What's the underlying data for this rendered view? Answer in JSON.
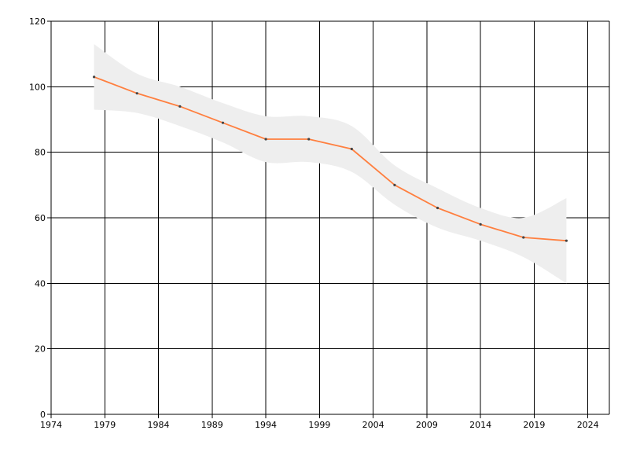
{
  "chart_data": {
    "type": "line",
    "title": "",
    "xlabel": "",
    "ylabel": "",
    "xlim": [
      1974,
      2026
    ],
    "ylim": [
      0,
      120
    ],
    "x_ticks": [
      1974,
      1979,
      1984,
      1989,
      1994,
      1999,
      2004,
      2009,
      2014,
      2019,
      2024
    ],
    "y_ticks": [
      0,
      20,
      40,
      60,
      80,
      100,
      120
    ],
    "grid": true,
    "legend": "none",
    "series": [
      {
        "x": [
          1978,
          1982,
          1986,
          1990,
          1994,
          1998,
          2002,
          2006,
          2010,
          2014,
          2018,
          2022
        ],
        "values": [
          103,
          98,
          94,
          89,
          84,
          84,
          81,
          70,
          63,
          58,
          54,
          53
        ],
        "color": "#ff7f3f"
      }
    ],
    "band": {
      "x": [
        1978,
        1982,
        1986,
        1990,
        1994,
        1998,
        2002,
        2006,
        2010,
        2014,
        2018,
        2022
      ],
      "lower": [
        93,
        92,
        88,
        83,
        77,
        77,
        74,
        64,
        57,
        53,
        48,
        40
      ],
      "upper": [
        113,
        104,
        100,
        95,
        91,
        91,
        88,
        76,
        69,
        63,
        60,
        66
      ],
      "color": "#eeeeee"
    },
    "colors": {
      "grid": "#000000",
      "axis": "#000000",
      "marker": "#444444"
    }
  }
}
